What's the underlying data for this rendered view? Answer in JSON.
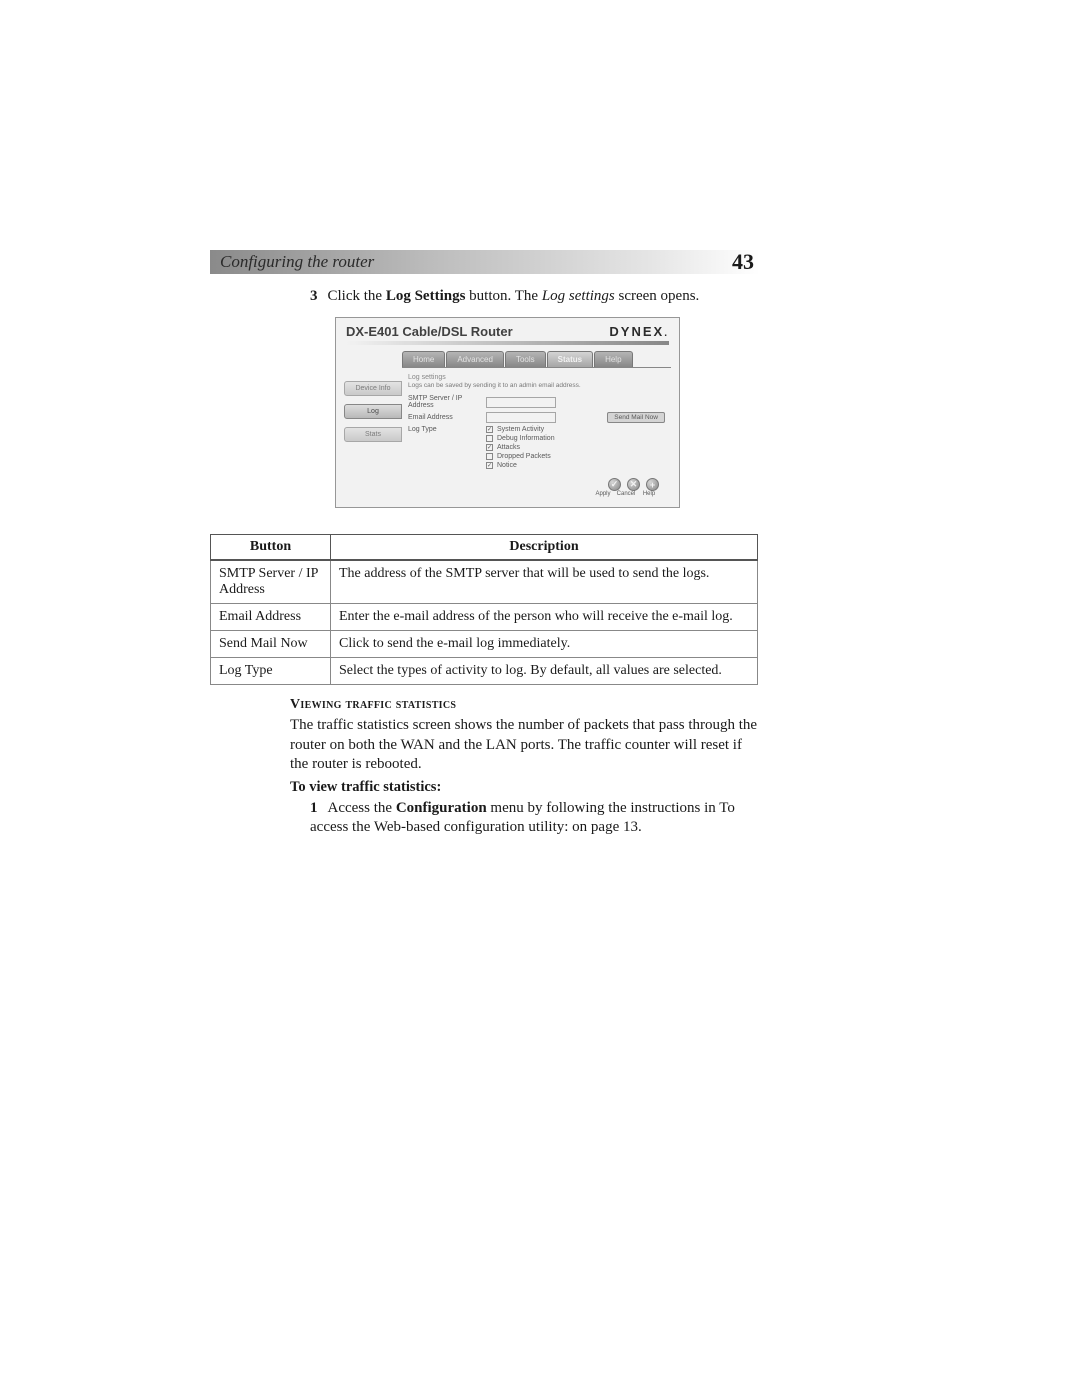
{
  "header": {
    "title": "Configuring the router",
    "page_number": "43"
  },
  "step": {
    "number": "3",
    "pre": "Click the ",
    "bold": "Log Settings",
    "mid": " button. The ",
    "italic": "Log settings",
    "post": " screen opens."
  },
  "screenshot": {
    "title": "DX-E401 Cable/DSL  Router",
    "brand": "DYNEX",
    "side_buttons": [
      "Device Info",
      "Log",
      "Stats"
    ],
    "tabs": [
      "Home",
      "Advanced",
      "Tools",
      "Status",
      "Help"
    ],
    "active_tab_index": 3,
    "section_title": "Log settings",
    "desc": "Logs can be saved by sending it to an admin email address.",
    "rows": {
      "smtp": "SMTP Server / IP Address",
      "email": "Email Address",
      "logtype": "Log Type"
    },
    "send_button": "Send Mail Now",
    "log_types": [
      {
        "label": "System Activity",
        "checked": true
      },
      {
        "label": "Debug Information",
        "checked": false
      },
      {
        "label": "Attacks",
        "checked": true
      },
      {
        "label": "Dropped Packets",
        "checked": false
      },
      {
        "label": "Notice",
        "checked": true
      }
    ],
    "footer_icons": [
      "✓",
      "✕",
      "+"
    ],
    "footer_labels": [
      "Apply",
      "Cancel",
      "Help"
    ]
  },
  "table": {
    "headers": [
      "Button",
      "Description"
    ],
    "rows": [
      [
        "SMTP Server / IP Address",
        "The address of the SMTP server that will be used to send the logs."
      ],
      [
        "Email Address",
        "Enter the e-mail address of the person who will receive the e-mail log."
      ],
      [
        "Send Mail Now",
        "Click to send the e-mail log immediately."
      ],
      [
        "Log Type",
        "Select the types of activity to log. By default, all values are selected."
      ]
    ]
  },
  "section": {
    "title": "Viewing traffic statistics",
    "para": "The traffic statistics screen shows the number of packets that pass through the router on both the WAN and the LAN ports. The traffic counter will reset if the router is rebooted.",
    "subhead": "To view traffic statistics:",
    "list_num": "1",
    "list_pre": "Access the ",
    "list_bold": "Configuration",
    "list_post": " menu by following the instructions in To access the Web-based configuration utility: on page 13."
  }
}
